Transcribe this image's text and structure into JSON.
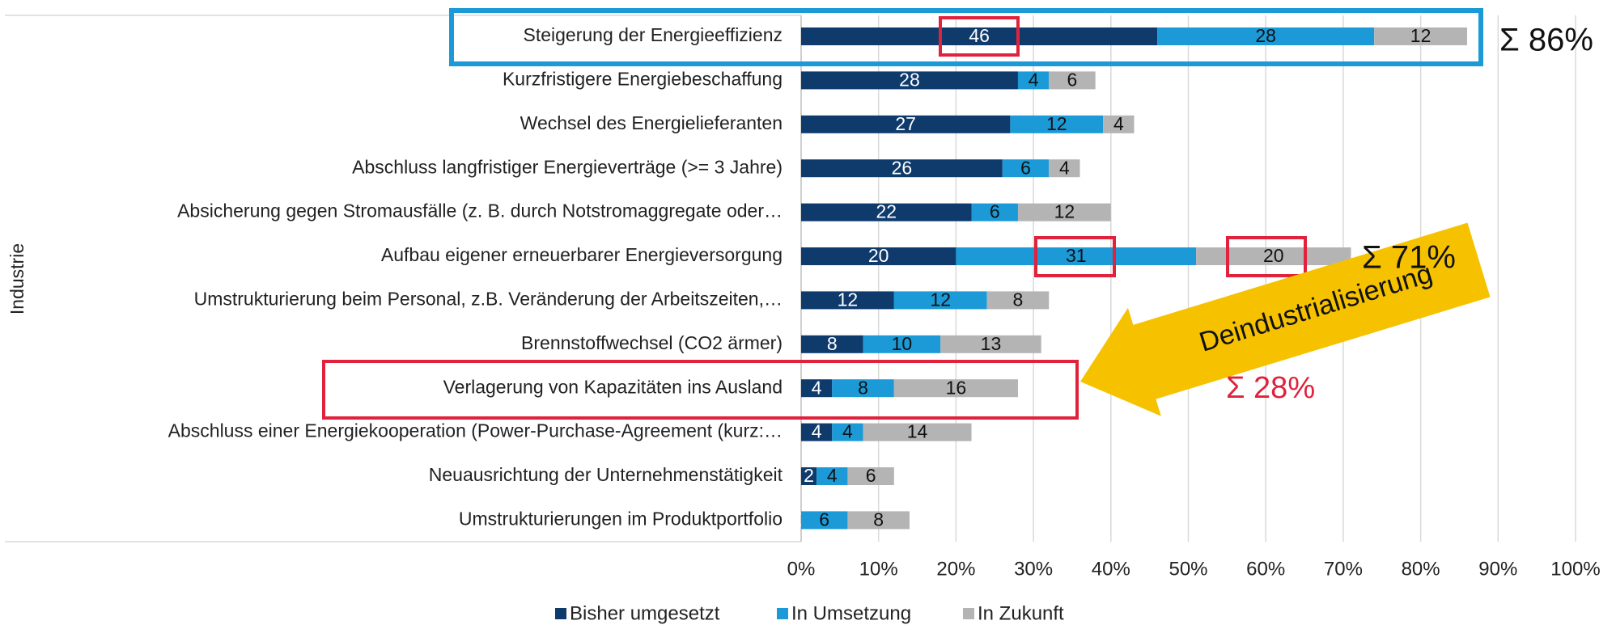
{
  "chart_data": {
    "type": "stacked_barh",
    "y_label": "Industrie",
    "categories": [
      "Steigerung der Energieeffizienz",
      "Kurzfristigere Energiebeschaffung",
      "Wechsel des Energielieferanten",
      "Abschluss langfristiger Energieverträge (>= 3 Jahre)",
      "Absicherung gegen Stromausfälle (z. B. durch Notstromaggregate oder…",
      "Aufbau eigener erneuerbarer Energieversorgung",
      "Umstrukturierung beim Personal, z.B. Veränderung der Arbeitszeiten,…",
      "Brennstoffwechsel (CO2 ärmer)",
      "Verlagerung von Kapazitäten ins Ausland",
      "Abschluss einer Energiekooperation (Power-Purchase-Agreement (kurz:…",
      "Neuausrichtung der Unternehmenstätigkeit",
      "Umstrukturierungen im Produktportfolio"
    ],
    "series": [
      {
        "name": "Bisher umgesetzt",
        "color": "#0e3a6c",
        "values": [
          46,
          28,
          27,
          26,
          22,
          20,
          12,
          8,
          4,
          4,
          2,
          0
        ]
      },
      {
        "name": "In Umsetzung",
        "color": "#1b9ad7",
        "values": [
          28,
          4,
          12,
          6,
          6,
          31,
          12,
          10,
          8,
          4,
          4,
          6
        ]
      },
      {
        "name": "In Zukunft",
        "color": "#b4b4b4",
        "values": [
          12,
          6,
          4,
          4,
          12,
          20,
          8,
          13,
          16,
          14,
          6,
          8
        ]
      }
    ],
    "xlim": [
      0,
      100
    ],
    "xticks": [
      {
        "value": 0,
        "label": "0%"
      },
      {
        "value": 10,
        "label": "10%"
      },
      {
        "value": 20,
        "label": "20%"
      },
      {
        "value": 30,
        "label": "30%"
      },
      {
        "value": 40,
        "label": "40%"
      },
      {
        "value": 50,
        "label": "50%"
      },
      {
        "value": 60,
        "label": "60%"
      },
      {
        "value": 70,
        "label": "70%"
      },
      {
        "value": 80,
        "label": "80%"
      },
      {
        "value": 90,
        "label": "90%"
      },
      {
        "value": 100,
        "label": "100%"
      }
    ],
    "grid": true,
    "legend": "bottom",
    "annotations": [
      "Σ 86%",
      "Σ 71%",
      "Deindustrialisierung",
      "Σ 28%"
    ]
  }
}
